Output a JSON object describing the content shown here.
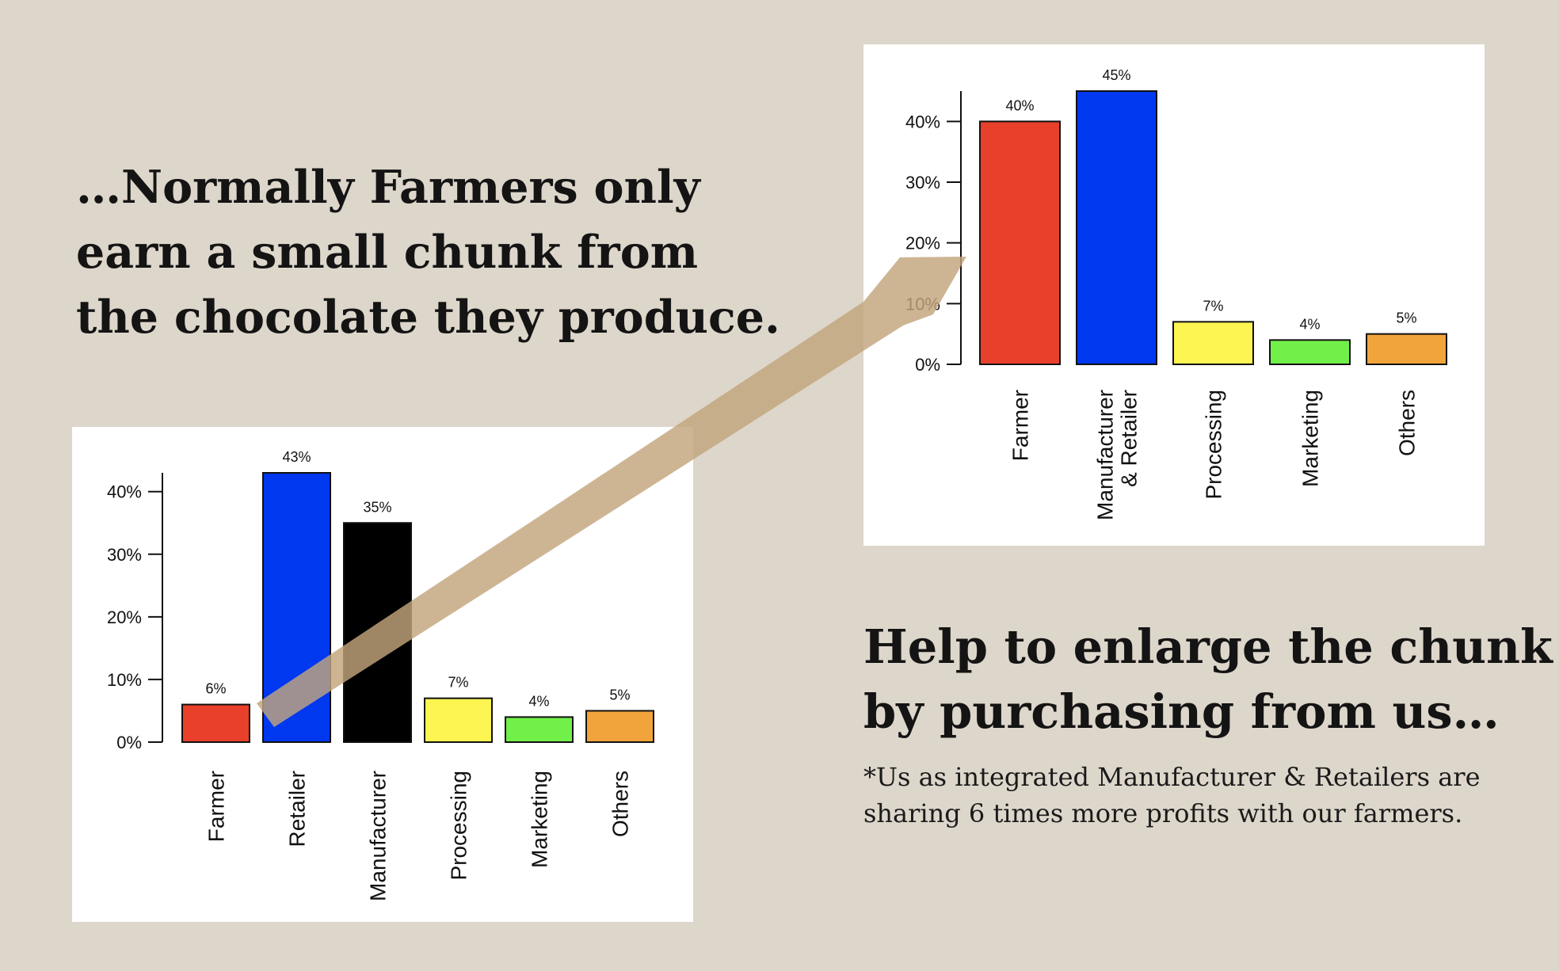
{
  "headline": {
    "line1": "…Normally Farmers only",
    "line2": "earn a small chunk from",
    "line3": "the chocolate they produce."
  },
  "cta": {
    "line1": "Help to enlarge the chunk",
    "line2": "by purchasing from us…"
  },
  "note": {
    "line1": "*Us as integrated Manufacturer & Retailers are",
    "line2": "sharing 6 times more profits with our farmers."
  },
  "colors": {
    "background": "#ddd6ca",
    "arrow": "#c2a57c",
    "farmer": "#e8402a",
    "retailer": "#0038f0",
    "manufacturer": "#000000",
    "processing": "#fdf552",
    "marketing": "#72f04a",
    "others": "#f2a43c"
  },
  "chart_data": [
    {
      "type": "bar",
      "categories": [
        "Farmer",
        "Retailer",
        "Manufacturer",
        "Processing",
        "Marketing",
        "Others"
      ],
      "values": [
        6,
        43,
        35,
        7,
        4,
        5
      ],
      "data_labels": [
        "6%",
        "43%",
        "35%",
        "7%",
        "4%",
        "5%"
      ],
      "colors": [
        "#e8402a",
        "#0038f0",
        "#000000",
        "#fdf552",
        "#72f04a",
        "#f2a43c"
      ],
      "ylim": [
        0,
        43
      ],
      "yticks": [
        0,
        10,
        20,
        30,
        40
      ],
      "ytick_labels": [
        "0%",
        "10%",
        "20%",
        "30%",
        "40%"
      ],
      "grid": false,
      "title": "",
      "xlabel": "",
      "ylabel": ""
    },
    {
      "type": "bar",
      "categories": [
        "Farmer",
        "Manufacturer\n& Retailer",
        "Processing",
        "Marketing",
        "Others"
      ],
      "values": [
        40,
        45,
        7,
        4,
        5
      ],
      "data_labels": [
        "40%",
        "45%",
        "7%",
        "4%",
        "5%"
      ],
      "colors": [
        "#e8402a",
        "#0038f0",
        "#fdf552",
        "#72f04a",
        "#f2a43c"
      ],
      "ylim": [
        0,
        45
      ],
      "yticks": [
        0,
        10,
        20,
        30,
        40
      ],
      "ytick_labels": [
        "0%",
        "10%",
        "20%",
        "30%",
        "40%"
      ],
      "grid": false,
      "title": "",
      "xlabel": "",
      "ylabel": ""
    }
  ]
}
